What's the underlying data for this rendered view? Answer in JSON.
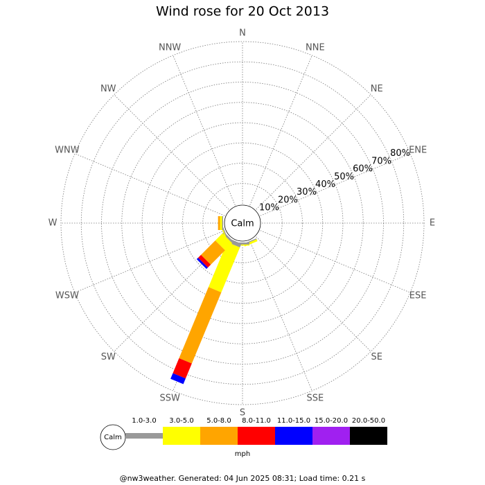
{
  "chart_data": {
    "type": "windrose",
    "title": "Wind rose for 20 Oct 2013",
    "calm_label": "Calm",
    "units": "mph",
    "footer": "@nw3weather. Generated: 04 Jun 2025 08:31; Load time: 0.21 s",
    "categories": [
      "N",
      "NNE",
      "NE",
      "ENE",
      "E",
      "ESE",
      "SE",
      "SSE",
      "S",
      "SSW",
      "SW",
      "WSW",
      "W",
      "WNW",
      "NW",
      "NNW"
    ],
    "rlim": [
      0,
      80
    ],
    "rticks": [
      {
        "value": 10,
        "label": "10%"
      },
      {
        "value": 20,
        "label": "20%"
      },
      {
        "value": 30,
        "label": "30%"
      },
      {
        "value": 40,
        "label": "40%"
      },
      {
        "value": 50,
        "label": "50%"
      },
      {
        "value": 60,
        "label": "60%"
      },
      {
        "value": 70,
        "label": "70%"
      },
      {
        "value": 80,
        "label": "80%"
      }
    ],
    "series": [
      {
        "name": "1.0-3.0",
        "color": "#999999",
        "values": [
          0,
          0,
          0,
          0,
          0,
          0,
          0,
          0.5,
          1,
          2,
          1,
          0.5,
          0.5,
          0,
          0,
          0
        ]
      },
      {
        "name": "3.0-5.0",
        "color": "#ffff00",
        "values": [
          0,
          0,
          0,
          0,
          0,
          0,
          0,
          1,
          0.5,
          24,
          5,
          0.5,
          1,
          0,
          0,
          0
        ]
      },
      {
        "name": "5.0-8.0",
        "color": "#ffa500",
        "values": [
          0,
          0,
          0,
          0,
          0,
          0,
          0,
          0,
          0,
          38,
          10,
          0,
          1,
          0,
          0,
          0
        ]
      },
      {
        "name": "8.0-11.0",
        "color": "#ff0000",
        "values": [
          0,
          0,
          0,
          0,
          0,
          0,
          0,
          0,
          0,
          8,
          2,
          0,
          0,
          0,
          0,
          0
        ]
      },
      {
        "name": "11.0-15.0",
        "color": "#0000ff",
        "values": [
          0,
          0,
          0,
          0,
          0,
          0,
          0,
          0,
          0,
          3,
          1,
          0,
          0,
          0,
          0,
          0
        ]
      },
      {
        "name": "15.0-20.0",
        "color": "#a020f0",
        "values": [
          0,
          0,
          0,
          0,
          0,
          0,
          0,
          0,
          0,
          0,
          0,
          0,
          0,
          0,
          0,
          0
        ]
      },
      {
        "name": "20.0-50.0",
        "color": "#000000",
        "values": [
          0,
          0,
          0,
          0,
          0,
          0,
          0,
          0,
          0,
          0,
          0,
          0,
          0,
          0,
          0,
          0
        ]
      }
    ]
  }
}
